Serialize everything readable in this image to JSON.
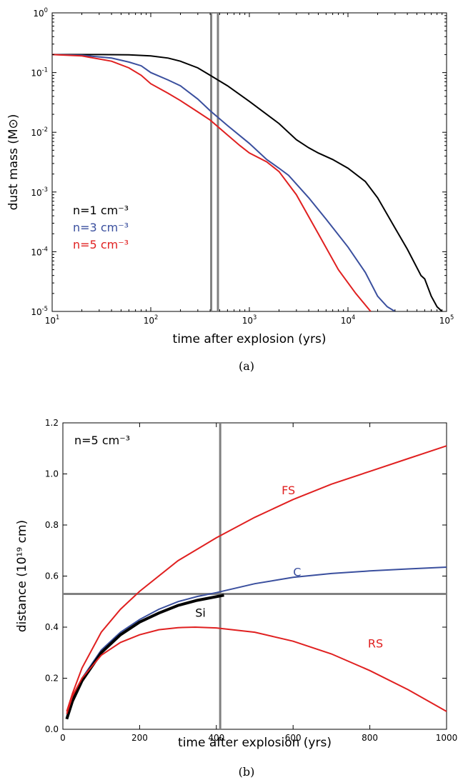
{
  "chart_data": [
    {
      "type": "line",
      "panel_label": "(a)",
      "xlabel": "time after explosion (yrs)",
      "ylabel": "dust mass (M⊙)",
      "x_scale": "log",
      "y_scale": "log",
      "xlim": [
        10,
        100000
      ],
      "ylim": [
        1e-05,
        1
      ],
      "x_ticks": [
        {
          "value": 10,
          "base": "10",
          "exp": "1"
        },
        {
          "value": 100,
          "base": "10",
          "exp": "2"
        },
        {
          "value": 1000,
          "base": "10",
          "exp": "3"
        },
        {
          "value": 10000,
          "base": "10",
          "exp": "4"
        },
        {
          "value": 100000,
          "base": "10",
          "exp": "5"
        }
      ],
      "y_ticks": [
        {
          "value": 1e-05,
          "base": "10",
          "exp": "-5"
        },
        {
          "value": 0.0001,
          "base": "10",
          "exp": "-4"
        },
        {
          "value": 0.001,
          "base": "10",
          "exp": "-3"
        },
        {
          "value": 0.01,
          "base": "10",
          "exp": "-2"
        },
        {
          "value": 0.1,
          "base": "10",
          "exp": "-1"
        },
        {
          "value": 1,
          "base": "10",
          "exp": "0"
        }
      ],
      "vertical_lines": [
        410,
        480
      ],
      "legend_placement": "lower-left",
      "series": [
        {
          "name": "n=1 cm⁻³",
          "color": "#000000",
          "x": [
            10,
            30,
            60,
            100,
            150,
            200,
            300,
            400,
            600,
            1000,
            2000,
            3000,
            4000,
            5000,
            7000,
            10000,
            15000,
            20000,
            30000,
            40000,
            55000,
            60000,
            70000,
            80000,
            90000
          ],
          "y": [
            0.2,
            0.2,
            0.198,
            0.19,
            0.175,
            0.155,
            0.12,
            0.09,
            0.06,
            0.033,
            0.014,
            0.0075,
            0.0055,
            0.0045,
            0.0035,
            0.0025,
            0.0015,
            0.0008,
            0.00025,
            0.00011,
            4e-05,
            3.5e-05,
            1.8e-05,
            1.2e-05,
            1e-05
          ]
        },
        {
          "name": "n=3 cm⁻³",
          "color": "#3a4f9e",
          "x": [
            10,
            20,
            40,
            60,
            80,
            100,
            150,
            200,
            300,
            400,
            600,
            1000,
            1500,
            2000,
            2500,
            4000,
            6000,
            10000,
            15000,
            20000,
            25000,
            30000
          ],
          "y": [
            0.2,
            0.195,
            0.175,
            0.15,
            0.13,
            0.1,
            0.075,
            0.06,
            0.036,
            0.023,
            0.013,
            0.0065,
            0.0035,
            0.0025,
            0.0019,
            0.0008,
            0.00035,
            0.00012,
            4.5e-05,
            1.8e-05,
            1.2e-05,
            1e-05
          ]
        },
        {
          "name": "n=5 cm⁻³",
          "color": "#e02020",
          "x": [
            10,
            20,
            40,
            60,
            80,
            100,
            150,
            200,
            300,
            400,
            600,
            800,
            1000,
            1500,
            2000,
            3000,
            5000,
            8000,
            12000,
            17000
          ],
          "y": [
            0.2,
            0.19,
            0.155,
            0.12,
            0.09,
            0.065,
            0.045,
            0.034,
            0.022,
            0.016,
            0.009,
            0.006,
            0.0045,
            0.0032,
            0.0022,
            0.0009,
            0.0002,
            5e-05,
            2e-05,
            1e-05
          ]
        }
      ]
    },
    {
      "type": "line",
      "panel_label": "(b)",
      "xlabel": "time after explosion (yrs)",
      "ylabel": "distance (10¹⁹ cm)",
      "xlim": [
        0,
        1000
      ],
      "ylim": [
        0,
        1.2
      ],
      "x_ticks": [
        "0",
        "200",
        "400",
        "600",
        "800",
        "1000"
      ],
      "y_ticks": [
        "0.0",
        "0.2",
        "0.4",
        "0.6",
        "0.8",
        "1.0",
        "1.2"
      ],
      "annotation": "n=5 cm⁻³",
      "vertical_line": 410,
      "horizontal_line": 0.53,
      "series": [
        {
          "name": "FS",
          "color": "#e02020",
          "x": [
            10,
            25,
            50,
            100,
            150,
            200,
            300,
            400,
            500,
            600,
            700,
            800,
            900,
            1000
          ],
          "y": [
            0.07,
            0.14,
            0.24,
            0.38,
            0.47,
            0.54,
            0.66,
            0.75,
            0.83,
            0.9,
            0.96,
            1.01,
            1.06,
            1.11
          ]
        },
        {
          "name": "C",
          "color": "#3a4f9e",
          "x": [
            10,
            25,
            50,
            100,
            150,
            200,
            250,
            300,
            350,
            400,
            500,
            600,
            700,
            800,
            900,
            1000
          ],
          "y": [
            0.05,
            0.12,
            0.2,
            0.31,
            0.38,
            0.43,
            0.47,
            0.5,
            0.52,
            0.535,
            0.57,
            0.595,
            0.61,
            0.62,
            0.628,
            0.635
          ]
        },
        {
          "name": "Si",
          "color": "#000000",
          "x": [
            10,
            25,
            50,
            100,
            150,
            200,
            250,
            300,
            350,
            420
          ],
          "y": [
            0.04,
            0.11,
            0.19,
            0.3,
            0.37,
            0.42,
            0.455,
            0.485,
            0.505,
            0.525
          ]
        },
        {
          "name": "RS",
          "color": "#e02020",
          "x": [
            10,
            25,
            50,
            100,
            150,
            200,
            250,
            300,
            345,
            400,
            500,
            600,
            700,
            800,
            900,
            1000
          ],
          "y": [
            0.06,
            0.13,
            0.2,
            0.29,
            0.34,
            0.37,
            0.39,
            0.398,
            0.4,
            0.397,
            0.38,
            0.345,
            0.295,
            0.23,
            0.155,
            0.07
          ]
        }
      ]
    }
  ]
}
